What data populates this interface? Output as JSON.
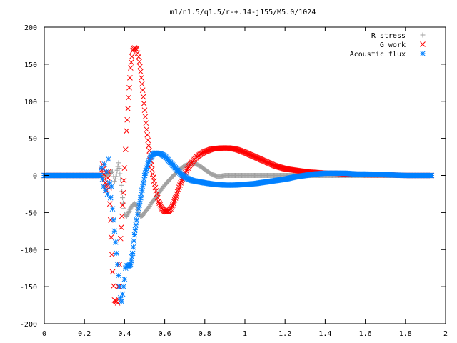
{
  "chart_data": {
    "type": "scatter",
    "title": "m1/n1.5/q1.5/r-+.14-j155/M5.0/1024",
    "xlabel": "",
    "ylabel": "",
    "xlim": [
      0,
      2
    ],
    "ylim": [
      -200,
      200
    ],
    "x_ticks": [
      "0",
      "0.2",
      "0.4",
      "0.6",
      "0.8",
      "1",
      "1.2",
      "1.4",
      "1.6",
      "1.8",
      "2"
    ],
    "y_ticks": [
      "200",
      "150",
      "100",
      "50",
      "0",
      "-50",
      "-100",
      "-150",
      "-200"
    ],
    "grid": false,
    "legend_position": "top-right",
    "series": [
      {
        "name": "R stress",
        "marker": "plus",
        "color": "#a0a0a0",
        "points": [
          [
            0.0,
            0
          ],
          [
            0.1,
            0
          ],
          [
            0.2,
            0
          ],
          [
            0.28,
            0
          ],
          [
            0.3,
            0
          ],
          [
            0.32,
            2
          ],
          [
            0.34,
            5
          ],
          [
            0.35,
            -8
          ],
          [
            0.36,
            2
          ],
          [
            0.37,
            17
          ],
          [
            0.38,
            -5
          ],
          [
            0.39,
            -30
          ],
          [
            0.4,
            -52
          ],
          [
            0.41,
            -55
          ],
          [
            0.42,
            -50
          ],
          [
            0.43,
            -44
          ],
          [
            0.44,
            -40
          ],
          [
            0.45,
            -38
          ],
          [
            0.46,
            -42
          ],
          [
            0.47,
            -50
          ],
          [
            0.48,
            -55
          ],
          [
            0.49,
            -54
          ],
          [
            0.5,
            -50
          ],
          [
            0.52,
            -43
          ],
          [
            0.54,
            -35
          ],
          [
            0.56,
            -28
          ],
          [
            0.58,
            -20
          ],
          [
            0.6,
            -13
          ],
          [
            0.62,
            -7
          ],
          [
            0.64,
            -1
          ],
          [
            0.66,
            4
          ],
          [
            0.68,
            9
          ],
          [
            0.7,
            13
          ],
          [
            0.72,
            15
          ],
          [
            0.74,
            16
          ],
          [
            0.76,
            15
          ],
          [
            0.78,
            12
          ],
          [
            0.8,
            8
          ],
          [
            0.82,
            4
          ],
          [
            0.84,
            1
          ],
          [
            0.86,
            -1
          ],
          [
            0.88,
            -1
          ],
          [
            0.9,
            0
          ],
          [
            1.0,
            0
          ],
          [
            1.1,
            0
          ],
          [
            1.2,
            0
          ],
          [
            1.3,
            0
          ],
          [
            1.4,
            0
          ],
          [
            1.5,
            0
          ],
          [
            1.6,
            0
          ],
          [
            1.7,
            0
          ],
          [
            1.8,
            0
          ],
          [
            1.93,
            0
          ]
        ]
      },
      {
        "name": "G work",
        "marker": "cross",
        "color": "#ff0000",
        "points": [
          [
            0.0,
            0
          ],
          [
            0.1,
            0
          ],
          [
            0.2,
            0
          ],
          [
            0.28,
            0
          ],
          [
            0.29,
            15
          ],
          [
            0.3,
            -5
          ],
          [
            0.31,
            -20
          ],
          [
            0.32,
            5
          ],
          [
            0.33,
            -60
          ],
          [
            0.34,
            -130
          ],
          [
            0.35,
            -168
          ],
          [
            0.36,
            -170
          ],
          [
            0.365,
            -172
          ],
          [
            0.37,
            -150
          ],
          [
            0.375,
            -120
          ],
          [
            0.38,
            -85
          ],
          [
            0.39,
            -40
          ],
          [
            0.4,
            10
          ],
          [
            0.41,
            60
          ],
          [
            0.42,
            105
          ],
          [
            0.43,
            145
          ],
          [
            0.44,
            168
          ],
          [
            0.45,
            172
          ],
          [
            0.46,
            170
          ],
          [
            0.47,
            160
          ],
          [
            0.48,
            140
          ],
          [
            0.49,
            115
          ],
          [
            0.5,
            88
          ],
          [
            0.51,
            62
          ],
          [
            0.52,
            40
          ],
          [
            0.53,
            20
          ],
          [
            0.54,
            2
          ],
          [
            0.55,
            -12
          ],
          [
            0.56,
            -25
          ],
          [
            0.57,
            -35
          ],
          [
            0.58,
            -42
          ],
          [
            0.59,
            -46
          ],
          [
            0.6,
            -48
          ],
          [
            0.61,
            -49
          ],
          [
            0.62,
            -48
          ],
          [
            0.63,
            -45
          ],
          [
            0.64,
            -40
          ],
          [
            0.65,
            -33
          ],
          [
            0.66,
            -25
          ],
          [
            0.68,
            -10
          ],
          [
            0.7,
            2
          ],
          [
            0.72,
            12
          ],
          [
            0.74,
            19
          ],
          [
            0.76,
            25
          ],
          [
            0.78,
            29
          ],
          [
            0.8,
            32
          ],
          [
            0.82,
            34
          ],
          [
            0.84,
            36
          ],
          [
            0.86,
            36
          ],
          [
            0.88,
            37
          ],
          [
            0.9,
            37
          ],
          [
            0.92,
            37
          ],
          [
            0.94,
            36
          ],
          [
            0.96,
            35
          ],
          [
            0.98,
            33
          ],
          [
            1.0,
            31
          ],
          [
            1.05,
            25
          ],
          [
            1.1,
            19
          ],
          [
            1.15,
            13
          ],
          [
            1.2,
            9
          ],
          [
            1.25,
            7
          ],
          [
            1.3,
            5
          ],
          [
            1.35,
            4
          ],
          [
            1.4,
            3
          ],
          [
            1.45,
            3
          ],
          [
            1.5,
            2
          ],
          [
            1.55,
            2
          ],
          [
            1.6,
            1
          ],
          [
            1.7,
            1
          ],
          [
            1.8,
            0
          ],
          [
            1.93,
            0
          ]
        ]
      },
      {
        "name": "Acoustic flux",
        "marker": "star",
        "color": "#0080ff",
        "points": [
          [
            0.0,
            0
          ],
          [
            0.1,
            0
          ],
          [
            0.2,
            0
          ],
          [
            0.28,
            0
          ],
          [
            0.285,
            10
          ],
          [
            0.29,
            -5
          ],
          [
            0.295,
            -15
          ],
          [
            0.3,
            15
          ],
          [
            0.305,
            -20
          ],
          [
            0.31,
            5
          ],
          [
            0.315,
            -25
          ],
          [
            0.32,
            22
          ],
          [
            0.325,
            -10
          ],
          [
            0.33,
            -30
          ],
          [
            0.335,
            -15
          ],
          [
            0.34,
            -45
          ],
          [
            0.345,
            -60
          ],
          [
            0.35,
            -75
          ],
          [
            0.355,
            -90
          ],
          [
            0.36,
            -105
          ],
          [
            0.365,
            -120
          ],
          [
            0.37,
            -135
          ],
          [
            0.375,
            -150
          ],
          [
            0.38,
            -165
          ],
          [
            0.385,
            -170
          ],
          [
            0.39,
            -160
          ],
          [
            0.395,
            -150
          ],
          [
            0.4,
            -140
          ],
          [
            0.405,
            -125
          ],
          [
            0.41,
            -122
          ],
          [
            0.42,
            -122
          ],
          [
            0.43,
            -120
          ],
          [
            0.44,
            -105
          ],
          [
            0.45,
            -80
          ],
          [
            0.46,
            -60
          ],
          [
            0.47,
            -45
          ],
          [
            0.48,
            -30
          ],
          [
            0.49,
            -15
          ],
          [
            0.5,
            0
          ],
          [
            0.51,
            10
          ],
          [
            0.52,
            18
          ],
          [
            0.53,
            24
          ],
          [
            0.54,
            28
          ],
          [
            0.55,
            30
          ],
          [
            0.56,
            30
          ],
          [
            0.58,
            29
          ],
          [
            0.6,
            26
          ],
          [
            0.62,
            20
          ],
          [
            0.64,
            14
          ],
          [
            0.66,
            8
          ],
          [
            0.68,
            2
          ],
          [
            0.7,
            -2
          ],
          [
            0.72,
            -5
          ],
          [
            0.74,
            -7
          ],
          [
            0.76,
            -8
          ],
          [
            0.78,
            -9
          ],
          [
            0.8,
            -10
          ],
          [
            0.85,
            -12
          ],
          [
            0.9,
            -13
          ],
          [
            0.95,
            -13
          ],
          [
            1.0,
            -12
          ],
          [
            1.05,
            -11
          ],
          [
            1.1,
            -9
          ],
          [
            1.15,
            -7
          ],
          [
            1.2,
            -5
          ],
          [
            1.25,
            -2
          ],
          [
            1.3,
            0
          ],
          [
            1.35,
            2
          ],
          [
            1.4,
            3
          ],
          [
            1.45,
            3
          ],
          [
            1.5,
            3
          ],
          [
            1.55,
            2
          ],
          [
            1.6,
            2
          ],
          [
            1.7,
            1
          ],
          [
            1.8,
            0
          ],
          [
            1.93,
            0
          ]
        ]
      }
    ]
  }
}
